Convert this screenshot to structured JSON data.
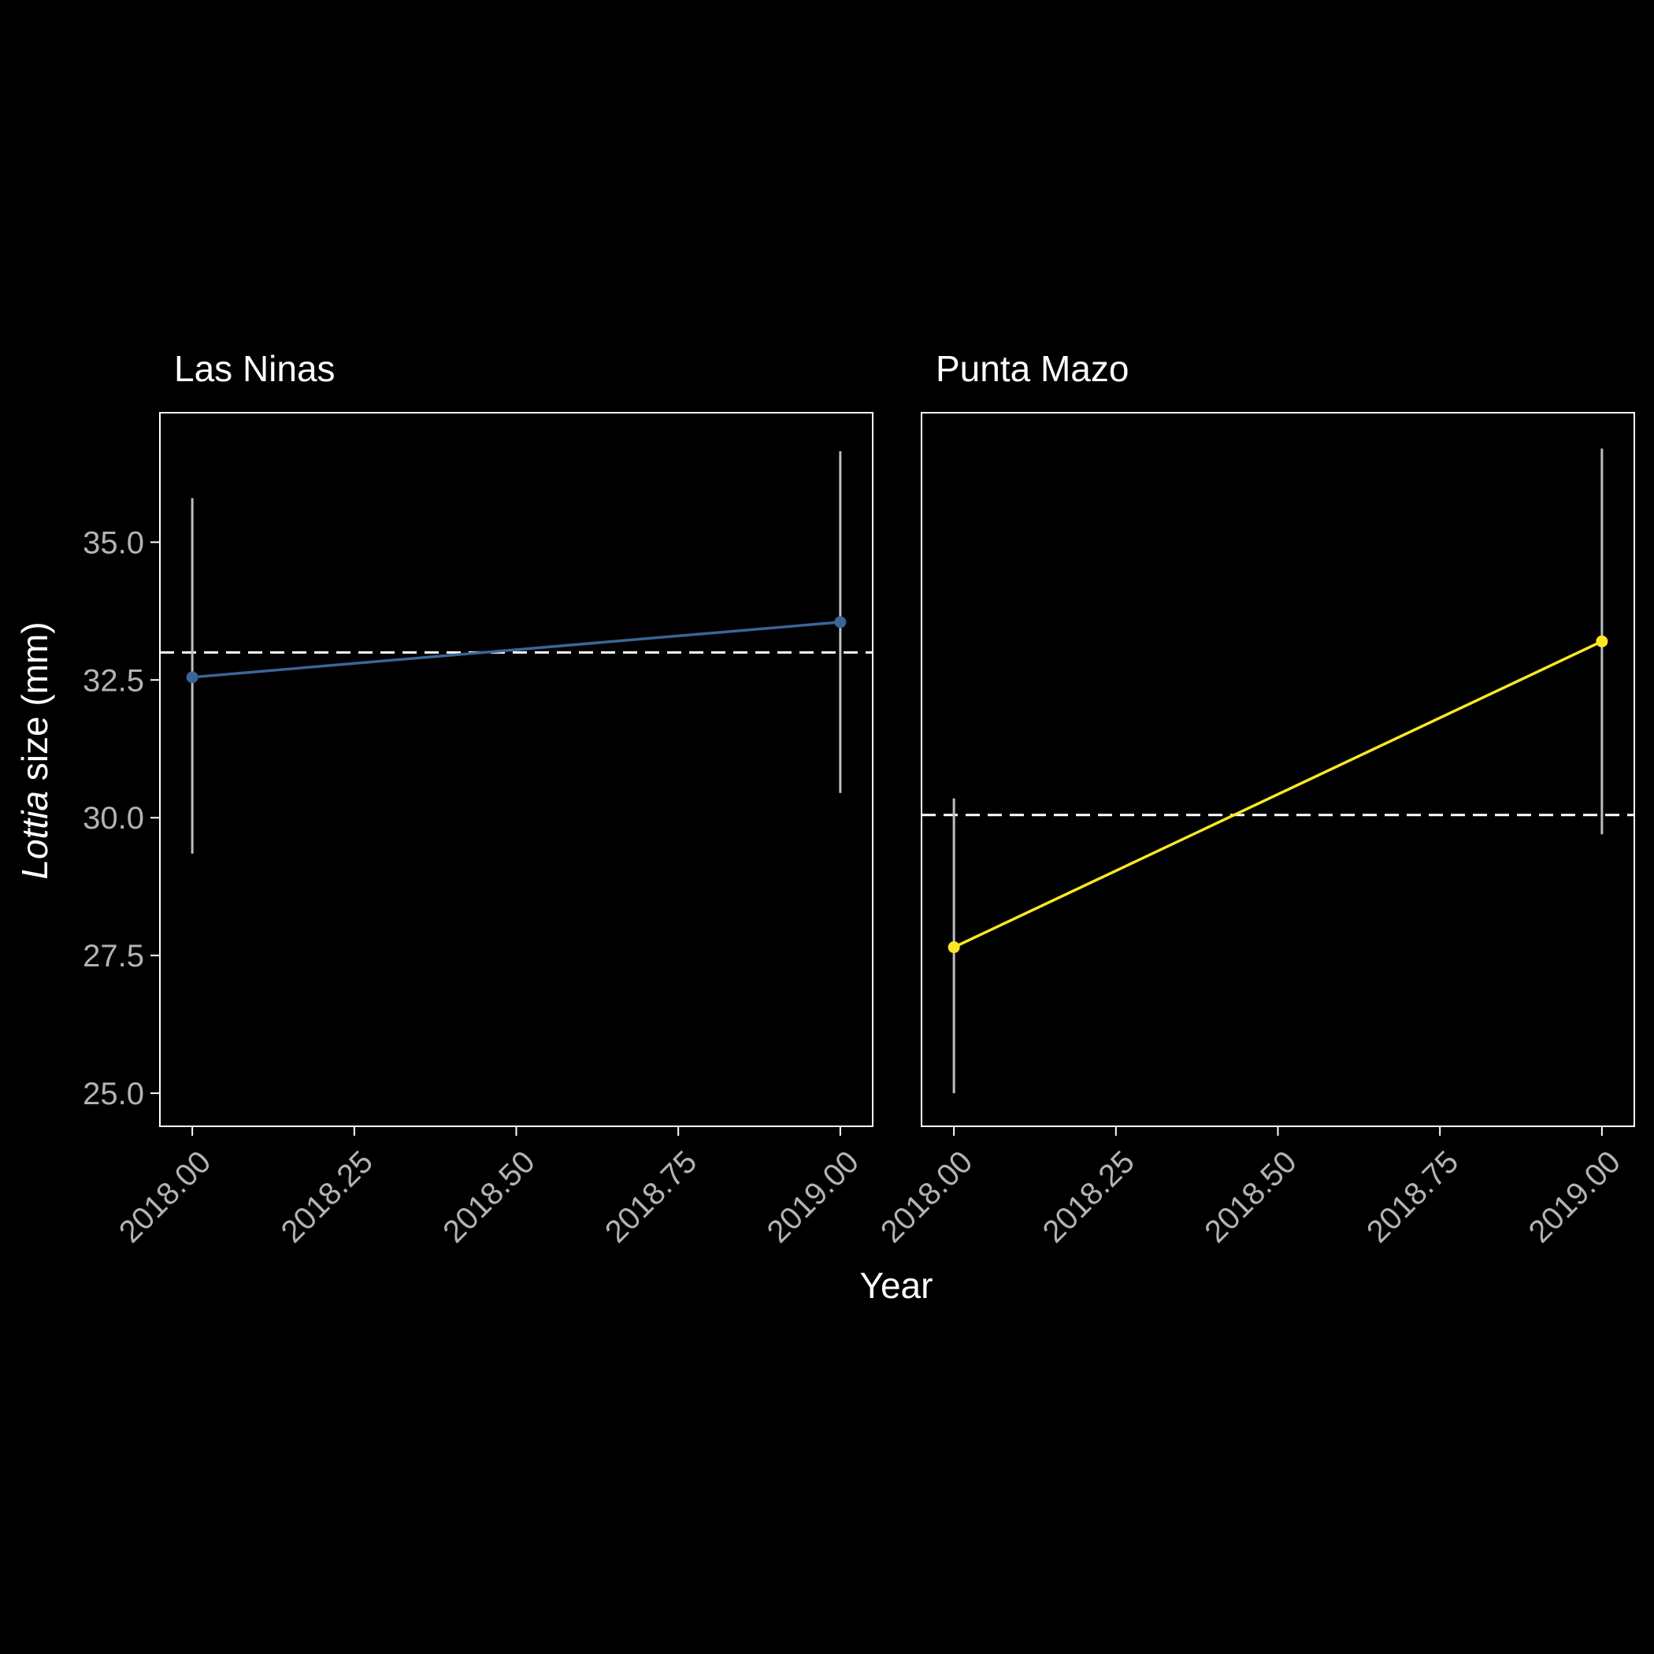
{
  "chart_data": {
    "type": "line",
    "ylabel_italic": "Lottia",
    "ylabel_rest": " size (mm)",
    "xlabel": "Year",
    "ylim": [
      24.4,
      37.35
    ],
    "xlim": [
      2017.95,
      2019.05
    ],
    "xticks": [
      2018.0,
      2018.25,
      2018.5,
      2018.75,
      2019.0
    ],
    "xtick_labels": [
      "2018.00",
      "2018.25",
      "2018.50",
      "2018.75",
      "2019.00"
    ],
    "yticks": [
      25.0,
      27.5,
      30.0,
      32.5,
      35.0
    ],
    "ytick_labels": [
      "25.0",
      "27.5",
      "30.0",
      "32.5",
      "35.0"
    ],
    "grid": false,
    "background": "#000000",
    "panel_border_color": "#ffffff",
    "errorbar_color": "#bebebe",
    "reference_line_color": "#ffffff",
    "panels": [
      {
        "title": "Las Ninas",
        "color": "#3b6597",
        "x": [
          2018.0,
          2019.0
        ],
        "y": [
          32.55,
          33.55
        ],
        "ymin": [
          29.35,
          30.45
        ],
        "ymax": [
          35.8,
          36.65
        ],
        "reference_y": 33.0
      },
      {
        "title": "Punta Mazo",
        "color": "#fde725",
        "x": [
          2018.0,
          2019.0
        ],
        "y": [
          27.65,
          33.2
        ],
        "ymin": [
          25.0,
          29.7
        ],
        "ymax": [
          30.35,
          36.7
        ],
        "reference_y": 30.05
      }
    ]
  }
}
